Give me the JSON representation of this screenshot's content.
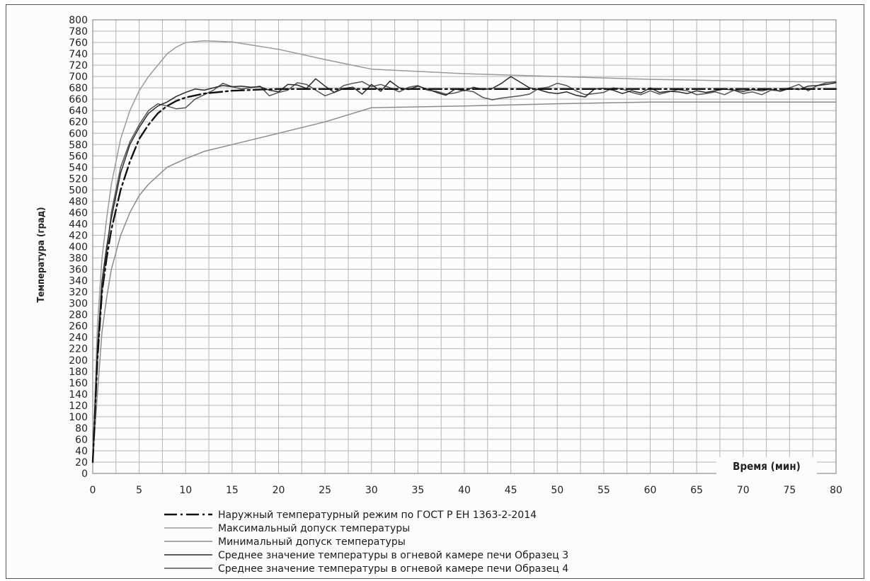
{
  "chart_data": {
    "type": "line",
    "title": "",
    "xlabel": "Время (мин)",
    "ylabel": "Температура (град)",
    "xlim": [
      0,
      80
    ],
    "ylim": [
      0,
      800
    ],
    "x_ticks": [
      0,
      5,
      10,
      15,
      20,
      25,
      30,
      35,
      40,
      45,
      50,
      55,
      60,
      65,
      70,
      75,
      80
    ],
    "y_ticks": [
      0,
      20,
      40,
      60,
      80,
      100,
      120,
      140,
      160,
      180,
      200,
      220,
      240,
      260,
      280,
      300,
      320,
      340,
      360,
      380,
      400,
      420,
      440,
      460,
      480,
      500,
      520,
      540,
      560,
      580,
      600,
      620,
      640,
      660,
      680,
      700,
      720,
      740,
      760,
      780,
      800
    ],
    "grid": true,
    "legend_position": "bottom",
    "series": [
      {
        "name": "Наружный температурный режим по ГОСТ Р ЕН 1363-2-2014",
        "color": "#111111",
        "style": "dash-dot",
        "x": [
          0,
          0.5,
          1,
          1.5,
          2,
          3,
          4,
          5,
          6,
          7,
          8,
          9,
          10,
          12,
          15,
          18,
          20,
          22,
          25,
          30,
          40,
          50,
          60,
          70,
          80
        ],
        "y": [
          20,
          200,
          320,
          380,
          430,
          500,
          550,
          590,
          615,
          635,
          648,
          657,
          663,
          670,
          675,
          677,
          678,
          678,
          678,
          678,
          678,
          678,
          678,
          678,
          678
        ]
      },
      {
        "name": "Максимальный допуск температуры",
        "color": "#9a9a9a",
        "style": "solid",
        "x": [
          0,
          0.5,
          1,
          1.5,
          2,
          3,
          4,
          5,
          6,
          7,
          8,
          9,
          10,
          12,
          15,
          20,
          25,
          30,
          40,
          50,
          60,
          70,
          80
        ],
        "y": [
          20,
          260,
          380,
          450,
          510,
          590,
          640,
          675,
          700,
          720,
          740,
          752,
          760,
          763,
          761,
          748,
          730,
          713,
          705,
          700,
          695,
          692,
          690
        ]
      },
      {
        "name": "Минимальный допуск температуры",
        "color": "#8c8c8c",
        "style": "solid",
        "x": [
          0,
          0.5,
          1,
          1.5,
          2,
          3,
          4,
          5,
          6,
          8,
          10,
          12,
          15,
          20,
          25,
          30,
          40,
          50,
          60,
          70,
          80
        ],
        "y": [
          20,
          140,
          250,
          310,
          360,
          420,
          460,
          490,
          510,
          540,
          555,
          568,
          580,
          600,
          620,
          645,
          648,
          652,
          655,
          655,
          655
        ]
      },
      {
        "name": "Среднее значение температуры в огневой камере печи Образец 3",
        "color": "#2a2a2a",
        "style": "solid",
        "x": [
          0,
          0.5,
          1,
          1.5,
          2,
          3,
          4,
          5,
          6,
          7,
          8,
          9,
          10,
          11,
          12,
          13,
          14,
          15,
          16,
          17,
          18,
          19,
          20,
          21,
          22,
          23,
          24,
          25,
          26,
          27,
          28,
          29,
          30,
          31,
          32,
          33,
          34,
          35,
          36,
          37,
          38,
          39,
          40,
          41,
          42,
          43,
          44,
          45,
          46,
          47,
          48,
          49,
          50,
          51,
          52,
          53,
          54,
          55,
          56,
          57,
          58,
          59,
          60,
          61,
          62,
          63,
          64,
          65,
          66,
          67,
          68,
          69,
          70,
          71,
          72,
          73,
          74,
          75,
          76,
          77,
          78,
          79,
          80
        ],
        "y": [
          20,
          220,
          340,
          400,
          450,
          530,
          580,
          610,
          635,
          648,
          655,
          665,
          672,
          678,
          676,
          680,
          684,
          682,
          683,
          681,
          682,
          676,
          673,
          686,
          685,
          679,
          696,
          683,
          672,
          679,
          681,
          669,
          686,
          674,
          692,
          680,
          677,
          683,
          678,
          672,
          667,
          678,
          675,
          681,
          677,
          679,
          688,
          700,
          690,
          680,
          677,
          672,
          670,
          673,
          667,
          664,
          678,
          679,
          676,
          670,
          675,
          671,
          680,
          672,
          674,
          673,
          670,
          675,
          672,
          675,
          678,
          676,
          674,
          677,
          675,
          678,
          674,
          679,
          677,
          683,
          684,
          686,
          689
        ]
      },
      {
        "name": "Среднее значение температуры в огневой камере печи Образец 4",
        "color": "#555555",
        "style": "solid",
        "x": [
          0,
          0.5,
          1,
          1.5,
          2,
          3,
          4,
          5,
          6,
          7,
          8,
          9,
          10,
          11,
          12,
          13,
          14,
          15,
          16,
          17,
          18,
          19,
          20,
          21,
          22,
          23,
          24,
          25,
          26,
          27,
          28,
          29,
          30,
          31,
          32,
          33,
          34,
          35,
          36,
          37,
          38,
          39,
          40,
          41,
          42,
          43,
          44,
          45,
          46,
          47,
          48,
          49,
          50,
          51,
          52,
          53,
          54,
          55,
          56,
          57,
          58,
          59,
          60,
          61,
          62,
          63,
          64,
          65,
          66,
          67,
          68,
          69,
          70,
          71,
          72,
          73,
          74,
          75,
          76,
          77,
          78,
          79,
          80
        ],
        "y": [
          20,
          200,
          320,
          390,
          460,
          540,
          585,
          615,
          640,
          652,
          648,
          643,
          645,
          660,
          668,
          676,
          688,
          682,
          678,
          680,
          683,
          666,
          672,
          676,
          689,
          686,
          676,
          666,
          672,
          684,
          688,
          691,
          682,
          686,
          680,
          673,
          681,
          684,
          676,
          674,
          669,
          671,
          676,
          673,
          663,
          659,
          662,
          664,
          666,
          669,
          679,
          681,
          688,
          684,
          675,
          668,
          670,
          672,
          680,
          678,
          672,
          668,
          675,
          669,
          673,
          677,
          675,
          668,
          670,
          673,
          668,
          676,
          670,
          673,
          668,
          676,
          675,
          680,
          686,
          675,
          684,
          689,
          691
        ]
      }
    ]
  }
}
